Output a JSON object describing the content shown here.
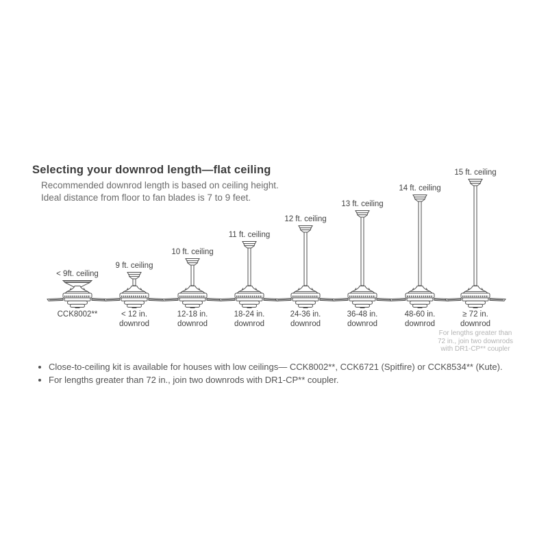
{
  "page": {
    "title": "Selecting your downrod length—flat ceiling",
    "subtitle_line1": "Recommended downrod length is based on ceiling height.",
    "subtitle_line2": "Ideal distance from floor to fan blades is 7 to 9 feet."
  },
  "diagram": {
    "fans": [
      {
        "ceiling": "< 9ft. ceiling",
        "downrod_line1": "CCK8002**",
        "downrod_line2": ""
      },
      {
        "ceiling": "9 ft. ceiling",
        "downrod_line1": "< 12 in.",
        "downrod_line2": "downrod"
      },
      {
        "ceiling": "10 ft. ceiling",
        "downrod_line1": "12-18 in.",
        "downrod_line2": "downrod"
      },
      {
        "ceiling": "11 ft. ceiling",
        "downrod_line1": "18-24 in.",
        "downrod_line2": "downrod"
      },
      {
        "ceiling": "12 ft. ceiling",
        "downrod_line1": "24-36 in.",
        "downrod_line2": "downrod"
      },
      {
        "ceiling": "13 ft. ceiling",
        "downrod_line1": "36-48 in.",
        "downrod_line2": "downrod"
      },
      {
        "ceiling": "14 ft. ceiling",
        "downrod_line1": "48-60 in.",
        "downrod_line2": "downrod"
      },
      {
        "ceiling": "15 ft. ceiling",
        "downrod_line1": "≥ 72 in.",
        "downrod_line2": "downrod",
        "note_line1": "For lengths greater than",
        "note_line2": "72 in., join two downrods",
        "note_line3": "with DR1-CP** coupler"
      }
    ]
  },
  "footnotes": [
    "Close-to-ceiling kit is available for houses with low ceilings— CCK8002**, CCK6721 (Spitfire) or CCK8534** (Kute).",
    "For lengths greater than 72 in., join two downrods with DR1-CP** coupler."
  ],
  "colors": {
    "line_art": "#4d4d4d",
    "text_dark": "#3b3b3b",
    "text_gray": "#6a6a6a",
    "text_light": "#b4b4b4"
  }
}
